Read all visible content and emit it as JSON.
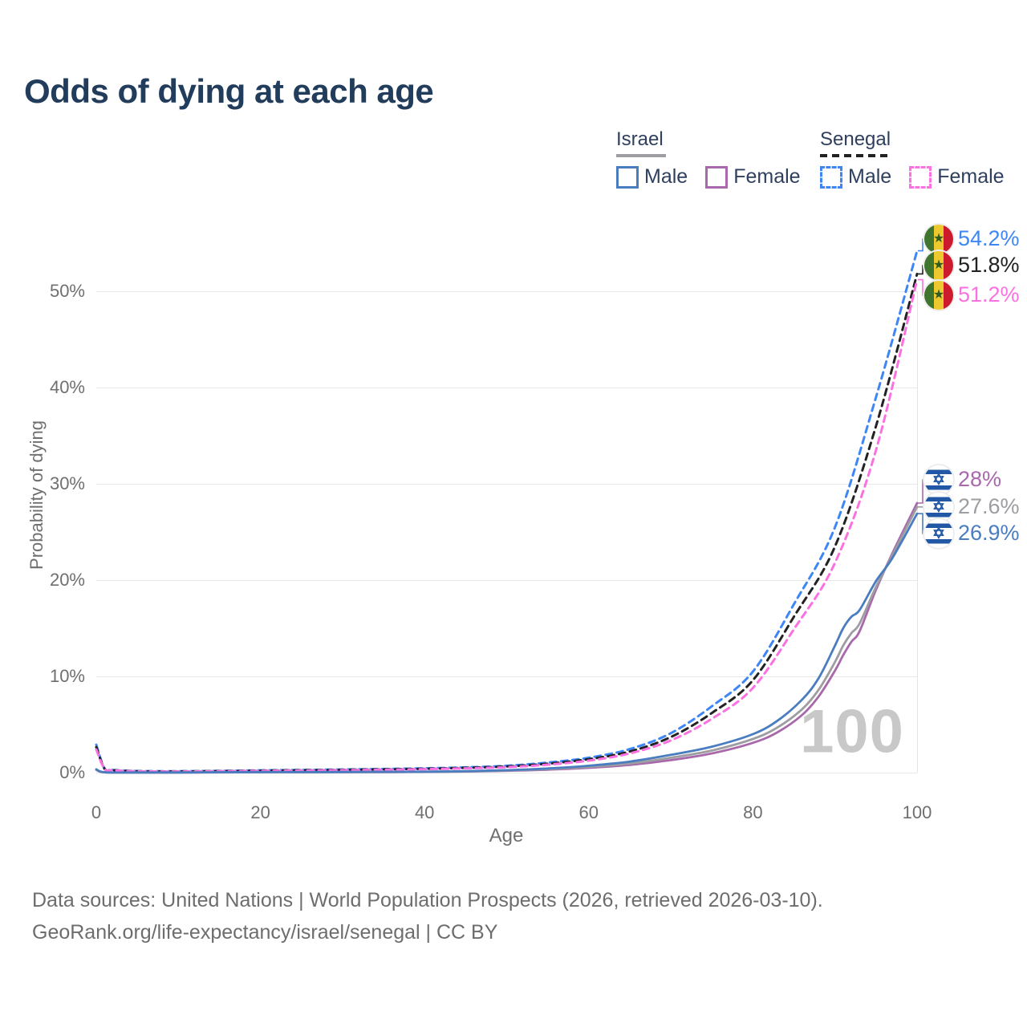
{
  "header": {
    "title": "Odds of dying at each age"
  },
  "watermark": {
    "text": "100"
  },
  "legend": {
    "groups": [
      {
        "label": "Israel",
        "line_style": "solid",
        "line_color": "#9d9da2",
        "items": [
          {
            "label": "Male",
            "color": "#4a7cc0"
          },
          {
            "label": "Female",
            "color": "#a868ab"
          }
        ]
      },
      {
        "label": "Senegal",
        "line_style": "dashed",
        "line_color": "#222222",
        "items": [
          {
            "label": "Male",
            "color": "#3e86f5"
          },
          {
            "label": "Female",
            "color": "#fb71e1"
          }
        ]
      }
    ]
  },
  "axes": {
    "x": {
      "label": "Age",
      "ticks": [
        "0",
        "20",
        "40",
        "60",
        "80",
        "100"
      ],
      "range": [
        0,
        100
      ]
    },
    "y": {
      "label": "Probability of dying",
      "ticks": [
        "0%",
        "10%",
        "20%",
        "30%",
        "40%",
        "50%"
      ],
      "range_pct": [
        0,
        55
      ]
    }
  },
  "footer": {
    "line1": "Data sources: United Nations | World Population Prospects (2026, retrieved 2026-03-10).",
    "line2": "GeoRank.org/life-expectancy/israel/senegal | CC BY"
  },
  "chart_data": {
    "type": "line",
    "title": "Odds of dying at each age",
    "xlabel": "Age",
    "ylabel": "Probability of dying",
    "xlim": [
      0,
      100
    ],
    "ylim_pct": [
      0,
      55
    ],
    "grid": "horizontal",
    "hover_age_indicator": "100",
    "series": [
      {
        "name": "Senegal Male",
        "country": "Senegal",
        "sex": "male",
        "color": "#3e86f5",
        "dashed": true,
        "end_label": "54.2%",
        "points": [
          [
            0,
            2.9
          ],
          [
            1,
            0.45
          ],
          [
            2,
            0.28
          ],
          [
            5,
            0.17
          ],
          [
            10,
            0.15
          ],
          [
            15,
            0.18
          ],
          [
            20,
            0.24
          ],
          [
            25,
            0.28
          ],
          [
            30,
            0.33
          ],
          [
            35,
            0.38
          ],
          [
            40,
            0.45
          ],
          [
            45,
            0.55
          ],
          [
            50,
            0.72
          ],
          [
            55,
            1.05
          ],
          [
            60,
            1.55
          ],
          [
            65,
            2.45
          ],
          [
            70,
            4.1
          ],
          [
            75,
            6.9
          ],
          [
            80,
            10.5
          ],
          [
            85,
            17.5
          ],
          [
            90,
            25.5
          ],
          [
            95,
            39.0
          ],
          [
            100,
            54.2
          ]
        ]
      },
      {
        "name": "Senegal Both sexes",
        "country": "Senegal",
        "sex": "both",
        "color": "#222222",
        "dashed": true,
        "end_label": "51.8%",
        "points": [
          [
            0,
            2.65
          ],
          [
            1,
            0.42
          ],
          [
            2,
            0.26
          ],
          [
            5,
            0.15
          ],
          [
            10,
            0.13
          ],
          [
            15,
            0.16
          ],
          [
            20,
            0.21
          ],
          [
            25,
            0.25
          ],
          [
            30,
            0.29
          ],
          [
            35,
            0.34
          ],
          [
            40,
            0.4
          ],
          [
            45,
            0.5
          ],
          [
            50,
            0.64
          ],
          [
            55,
            0.93
          ],
          [
            60,
            1.4
          ],
          [
            65,
            2.2
          ],
          [
            70,
            3.7
          ],
          [
            75,
            6.2
          ],
          [
            80,
            9.6
          ],
          [
            85,
            16.2
          ],
          [
            90,
            23.5
          ],
          [
            95,
            36.0
          ],
          [
            100,
            51.8
          ]
        ]
      },
      {
        "name": "Senegal Female",
        "country": "Senegal",
        "sex": "female",
        "color": "#fb71e1",
        "dashed": true,
        "end_label": "51.2%",
        "points": [
          [
            0,
            2.4
          ],
          [
            1,
            0.4
          ],
          [
            2,
            0.24
          ],
          [
            5,
            0.14
          ],
          [
            10,
            0.12
          ],
          [
            15,
            0.14
          ],
          [
            20,
            0.18
          ],
          [
            25,
            0.22
          ],
          [
            30,
            0.26
          ],
          [
            35,
            0.3
          ],
          [
            40,
            0.36
          ],
          [
            45,
            0.45
          ],
          [
            50,
            0.57
          ],
          [
            55,
            0.83
          ],
          [
            60,
            1.25
          ],
          [
            65,
            2.0
          ],
          [
            70,
            3.35
          ],
          [
            75,
            5.6
          ],
          [
            80,
            8.8
          ],
          [
            85,
            14.9
          ],
          [
            90,
            21.8
          ],
          [
            95,
            33.5
          ],
          [
            100,
            51.2
          ]
        ]
      },
      {
        "name": "Israel Female",
        "country": "Israel",
        "sex": "female",
        "color": "#a868ab",
        "dashed": false,
        "end_label": "28%",
        "points": [
          [
            0,
            0.3
          ],
          [
            1,
            0.03
          ],
          [
            5,
            0.015
          ],
          [
            10,
            0.015
          ],
          [
            15,
            0.025
          ],
          [
            20,
            0.04
          ],
          [
            25,
            0.045
          ],
          [
            30,
            0.05
          ],
          [
            35,
            0.06
          ],
          [
            40,
            0.08
          ],
          [
            45,
            0.12
          ],
          [
            50,
            0.19
          ],
          [
            55,
            0.31
          ],
          [
            60,
            0.5
          ],
          [
            65,
            0.8
          ],
          [
            70,
            1.3
          ],
          [
            75,
            2.0
          ],
          [
            80,
            3.1
          ],
          [
            83,
            4.2
          ],
          [
            86,
            6.0
          ],
          [
            88,
            7.9
          ],
          [
            90,
            10.6
          ],
          [
            91,
            12.2
          ],
          [
            92,
            13.6
          ],
          [
            93,
            14.7
          ],
          [
            95,
            19.0
          ],
          [
            97,
            22.8
          ],
          [
            100,
            28.0
          ]
        ]
      },
      {
        "name": "Israel Both sexes",
        "country": "Israel",
        "sex": "both",
        "color": "#9d9da2",
        "dashed": false,
        "end_label": "27.6%",
        "points": [
          [
            0,
            0.33
          ],
          [
            1,
            0.035
          ],
          [
            5,
            0.015
          ],
          [
            10,
            0.015
          ],
          [
            15,
            0.03
          ],
          [
            20,
            0.05
          ],
          [
            25,
            0.055
          ],
          [
            30,
            0.06
          ],
          [
            35,
            0.07
          ],
          [
            40,
            0.09
          ],
          [
            45,
            0.14
          ],
          [
            50,
            0.22
          ],
          [
            55,
            0.37
          ],
          [
            60,
            0.6
          ],
          [
            65,
            0.95
          ],
          [
            70,
            1.55
          ],
          [
            75,
            2.3
          ],
          [
            80,
            3.5
          ],
          [
            83,
            4.7
          ],
          [
            86,
            6.6
          ],
          [
            88,
            8.6
          ],
          [
            90,
            11.5
          ],
          [
            91,
            13.2
          ],
          [
            92,
            14.5
          ],
          [
            93,
            15.5
          ],
          [
            95,
            19.3
          ],
          [
            97,
            22.6
          ],
          [
            100,
            27.6
          ]
        ]
      },
      {
        "name": "Israel Male",
        "country": "Israel",
        "sex": "male",
        "color": "#4a7cc0",
        "dashed": false,
        "end_label": "26.9%",
        "points": [
          [
            0,
            0.35
          ],
          [
            1,
            0.04
          ],
          [
            5,
            0.02
          ],
          [
            10,
            0.02
          ],
          [
            15,
            0.04
          ],
          [
            20,
            0.06
          ],
          [
            25,
            0.06
          ],
          [
            30,
            0.07
          ],
          [
            35,
            0.08
          ],
          [
            40,
            0.1
          ],
          [
            45,
            0.16
          ],
          [
            50,
            0.26
          ],
          [
            55,
            0.43
          ],
          [
            60,
            0.72
          ],
          [
            65,
            1.15
          ],
          [
            70,
            1.85
          ],
          [
            75,
            2.7
          ],
          [
            80,
            4.0
          ],
          [
            83,
            5.4
          ],
          [
            86,
            7.6
          ],
          [
            88,
            9.8
          ],
          [
            90,
            13.2
          ],
          [
            91,
            15.0
          ],
          [
            92,
            16.2
          ],
          [
            93,
            16.9
          ],
          [
            95,
            19.9
          ],
          [
            97,
            22.3
          ],
          [
            100,
            26.9
          ]
        ]
      }
    ]
  }
}
